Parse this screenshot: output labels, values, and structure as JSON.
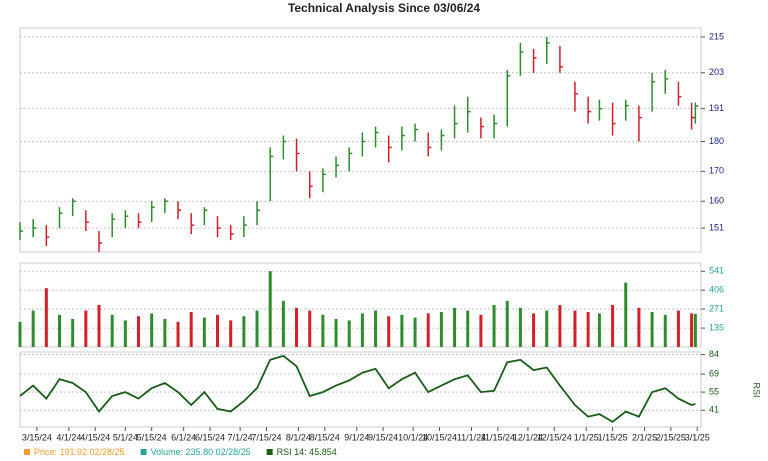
{
  "chart_data": [
    {
      "type": "ohlc",
      "title": "Technical Analysis Since 03/06/24",
      "x": [
        "3/6/24",
        "3/13/24",
        "3/20/24",
        "3/27/24",
        "4/3/24",
        "4/10/24",
        "4/17/24",
        "4/24/24",
        "5/1/24",
        "5/8/24",
        "5/15/24",
        "5/22/24",
        "5/29/24",
        "6/5/24",
        "6/12/24",
        "6/19/24",
        "6/26/24",
        "7/3/24",
        "7/10/24",
        "7/17/24",
        "7/24/24",
        "7/31/24",
        "8/7/24",
        "8/14/24",
        "8/21/24",
        "8/28/24",
        "9/4/24",
        "9/11/24",
        "9/18/24",
        "9/25/24",
        "10/2/24",
        "10/9/24",
        "10/16/24",
        "10/23/24",
        "10/30/24",
        "11/6/24",
        "11/13/24",
        "11/20/24",
        "11/27/24",
        "12/4/24",
        "12/11/24",
        "12/18/24",
        "12/26/24",
        "1/2/25",
        "1/8/25",
        "1/15/25",
        "1/22/25",
        "1/29/25",
        "2/5/25",
        "2/12/25",
        "2/19/25",
        "2/26/25",
        "2/28/25"
      ],
      "high": [
        153,
        154,
        152,
        158,
        161,
        157,
        150,
        156,
        157,
        156,
        160,
        161,
        160,
        156,
        158,
        155,
        152,
        155,
        160,
        178,
        182,
        181,
        170,
        171,
        175,
        178,
        183,
        185,
        182,
        185,
        186,
        183,
        184,
        192,
        195,
        188,
        189,
        204,
        213,
        211,
        215,
        212,
        200,
        195,
        194,
        193,
        194,
        192,
        203,
        204,
        200,
        193,
        193
      ],
      "low": [
        147,
        148,
        145,
        151,
        155,
        150,
        143,
        148,
        151,
        151,
        153,
        156,
        154,
        149,
        152,
        148,
        147,
        148,
        152,
        160,
        174,
        170,
        161,
        163,
        168,
        170,
        175,
        178,
        173,
        177,
        180,
        175,
        177,
        181,
        183,
        181,
        181,
        185,
        202,
        203,
        206,
        203,
        190,
        186,
        187,
        182,
        187,
        180,
        190,
        196,
        192,
        184,
        186
      ],
      "close": [
        150,
        151,
        148,
        156,
        160,
        153,
        146,
        154,
        155,
        153,
        158,
        160,
        157,
        152,
        157,
        151,
        149,
        152,
        157,
        175,
        180,
        176,
        165,
        169,
        172,
        176,
        180,
        183,
        178,
        182,
        184,
        178,
        182,
        186,
        190,
        185,
        186,
        202,
        210,
        208,
        213,
        205,
        196,
        190,
        191,
        186,
        192,
        188,
        200,
        201,
        195,
        188,
        191.92
      ],
      "up_color": "#2e8b2e",
      "down_color": "#d0202a",
      "xlim": [
        "3/6/24",
        "3/3/25"
      ],
      "ylim": [
        143,
        218
      ],
      "yticks": [
        151,
        160,
        170,
        180,
        191,
        203,
        215
      ],
      "grid": true,
      "legend": [
        {
          "text": "Price: 191.92 02/28/25",
          "color": "#f0a030"
        },
        {
          "text": "Volume: 235.80 02/28/25",
          "color": "#2aa198"
        },
        {
          "text": "RSI 14: 45.854",
          "color": "#1a5c1a"
        }
      ]
    },
    {
      "type": "bar",
      "values": [
        180,
        260,
        420,
        230,
        200,
        260,
        300,
        230,
        190,
        220,
        240,
        200,
        180,
        250,
        210,
        230,
        190,
        220,
        260,
        541,
        330,
        280,
        260,
        230,
        200,
        190,
        240,
        260,
        220,
        230,
        210,
        240,
        250,
        280,
        260,
        230,
        300,
        330,
        280,
        240,
        260,
        300,
        260,
        250,
        240,
        300,
        460,
        280,
        250,
        230,
        260,
        240,
        235.8
      ],
      "ylim": [
        0,
        600
      ],
      "yticks": [
        135,
        271,
        406,
        541
      ],
      "grid": true
    },
    {
      "type": "line",
      "y_label": "RSI",
      "color": "#1a5c1a",
      "values": [
        52,
        60,
        50,
        65,
        62,
        55,
        40,
        52,
        55,
        50,
        58,
        62,
        55,
        45,
        55,
        42,
        40,
        48,
        58,
        80,
        83,
        75,
        52,
        55,
        60,
        64,
        70,
        73,
        58,
        65,
        70,
        55,
        60,
        65,
        68,
        55,
        56,
        78,
        80,
        72,
        74,
        60,
        45,
        36,
        38,
        32,
        40,
        36,
        55,
        58,
        50,
        45,
        45.854
      ],
      "ylim": [
        28,
        86
      ],
      "yticks": [
        41,
        55,
        69,
        84
      ],
      "grid": true,
      "xticks": [
        "3/15/24",
        "4/1/24",
        "4/15/24",
        "5/1/24",
        "5/15/24",
        "6/1/24",
        "6/15/24",
        "7/1/24",
        "7/15/24",
        "8/1/24",
        "8/15/24",
        "9/1/24",
        "9/15/24",
        "10/1/24",
        "10/15/24",
        "11/1/24",
        "11/15/24",
        "12/1/24",
        "12/15/24",
        "1/1/25",
        "1/15/25",
        "2/1/25",
        "2/15/25",
        "3/1/25"
      ]
    }
  ]
}
